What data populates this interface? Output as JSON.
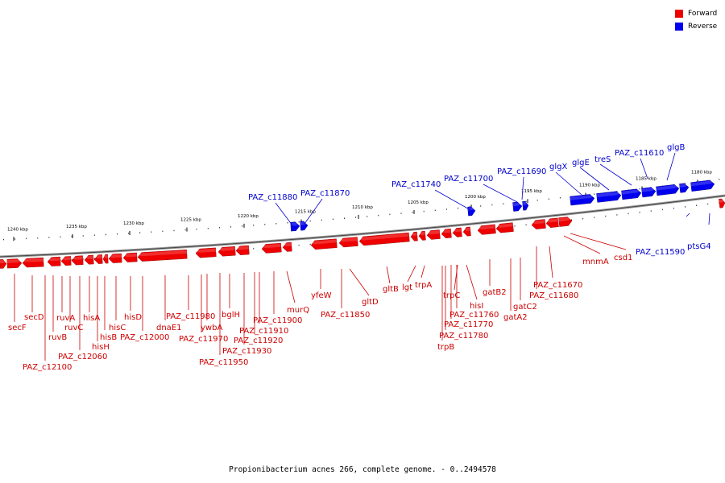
{
  "colors": {
    "forward": "#ee0000",
    "reverse": "#0000ee",
    "forward_text": "#cc0000",
    "reverse_text": "#0000cc"
  },
  "legend": [
    {
      "label": "Forward",
      "color": "#ee0000"
    },
    {
      "label": "Reverse",
      "color": "#0000ee"
    }
  ],
  "caption": "Propionibacterium acnes 266, complete genome. - 0..2494578",
  "ticks": [
    "1180 kbp",
    "1185 kbp",
    "1190 kbp",
    "1195 kbp",
    "1200 kbp",
    "1205 kbp",
    "1210 kbp",
    "1215 kbp",
    "1220 kbp",
    "1225 kbp",
    "1230 kbp",
    "1235 kbp",
    "1240 kbp"
  ],
  "reverse_genes": [
    "PAZ_c11880",
    "PAZ_c11870",
    "PAZ_c11740",
    "PAZ_c11700",
    "PAZ_c11690",
    "glgX",
    "glgE",
    "treS",
    "PAZ_c11610",
    "glgB",
    "PAZ_c11590",
    "ptsG4"
  ],
  "forward_genes": [
    "secF",
    "secD",
    "ruvB",
    "ruvA",
    "ruvC",
    "PAZ_c12100",
    "PAZ_c12060",
    "hisA",
    "hisB",
    "hisH",
    "hisC",
    "hisD",
    "PAZ_c12000",
    "dnaE1",
    "PAZ_c11980",
    "ywbA",
    "PAZ_c11970",
    "bglH",
    "PAZ_c11950",
    "PAZ_c11930",
    "PAZ_c11920",
    "PAZ_c11910",
    "PAZ_c11900",
    "murQ",
    "yfeW",
    "PAZ_c11850",
    "gltD",
    "gltB",
    "lgt",
    "trpA",
    "trpB",
    "PAZ_c11780",
    "PAZ_c11770",
    "PAZ_c11760",
    "trpC",
    "hisI",
    "gatB2",
    "gatA2",
    "gatC2",
    "PAZ_c11680",
    "PAZ_c11670",
    "mnmA",
    "csd1"
  ]
}
